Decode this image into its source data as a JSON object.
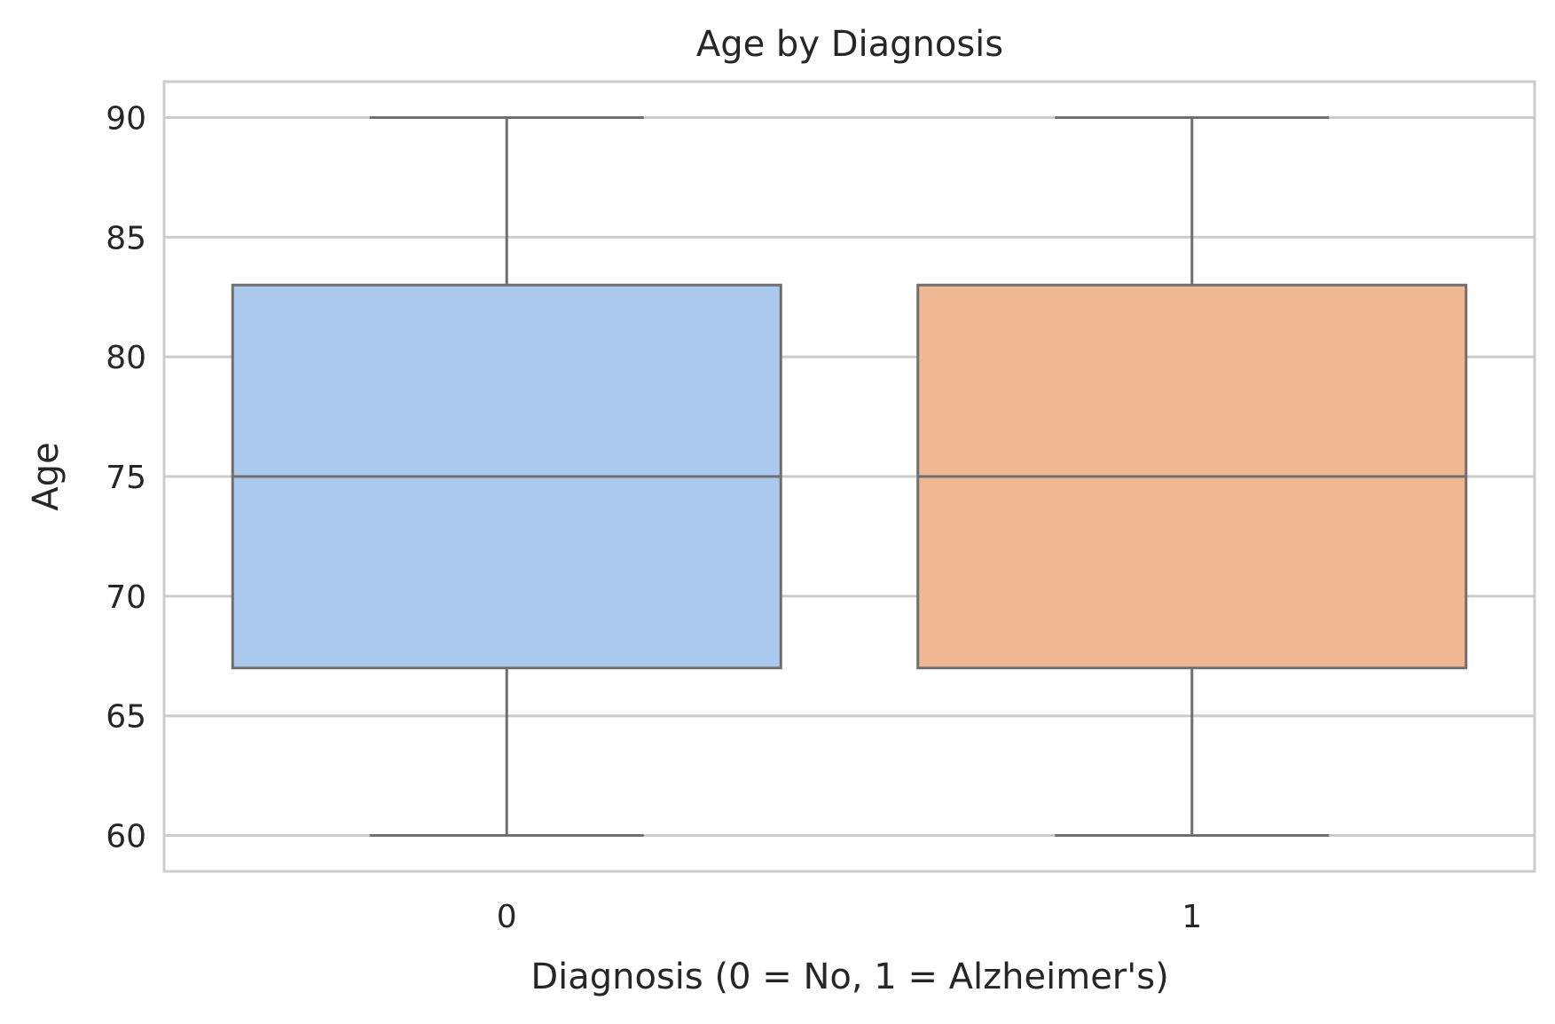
{
  "chart_data": {
    "type": "box",
    "title": "Age by Diagnosis",
    "xlabel": "Diagnosis (0 = No, 1 = Alzheimer's)",
    "ylabel": "Age",
    "categories": [
      "0",
      "1"
    ],
    "ylim": [
      58.5,
      91.5
    ],
    "yticks": [
      60,
      65,
      70,
      75,
      80,
      85,
      90
    ],
    "grid": true,
    "boxes": [
      {
        "category": "0",
        "whisker_low": 60,
        "q1": 67,
        "median": 75,
        "q3": 83,
        "whisker_high": 90,
        "color": "#abc9ec"
      },
      {
        "category": "1",
        "whisker_low": 60,
        "q1": 67,
        "median": 75,
        "q3": 83,
        "whisker_high": 90,
        "color": "#f0b892"
      }
    ]
  },
  "colors": {
    "grid": "#cccccc",
    "frame": "#cccccc",
    "box_edge": "#6f6f6f",
    "text": "#262626"
  }
}
